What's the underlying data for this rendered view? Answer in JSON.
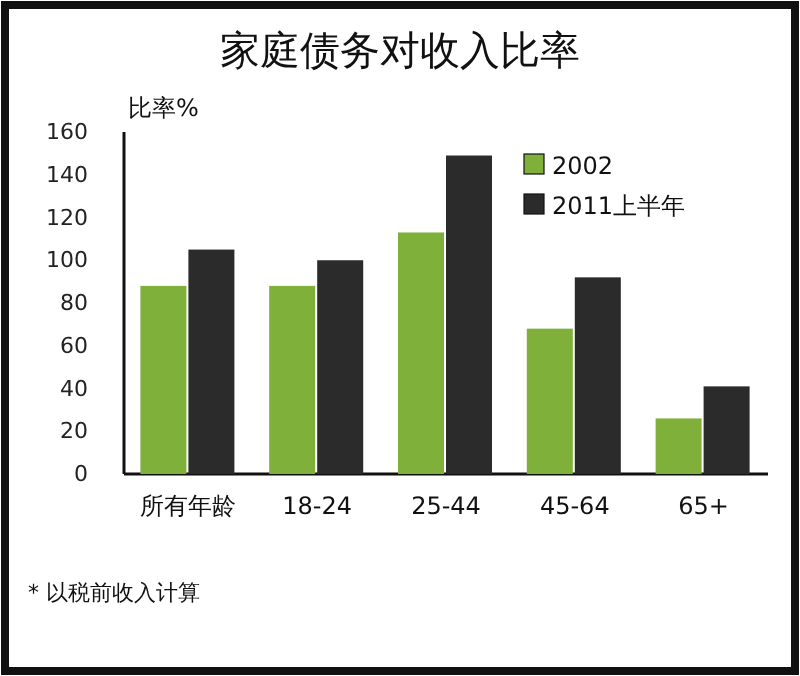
{
  "chart_data": {
    "type": "bar",
    "title": "家庭债务对收入比率",
    "ylabel": "比率%",
    "categories": [
      "所有年龄",
      "18-24",
      "25-44",
      "45-64",
      "65+"
    ],
    "series": [
      {
        "name": "2002",
        "color": "#7fb03a",
        "values": [
          88,
          88,
          113,
          68,
          26
        ]
      },
      {
        "name": "2011上半年",
        "color": "#2b2b2b",
        "values": [
          105,
          100,
          149,
          92,
          41
        ]
      }
    ],
    "ylim": [
      0,
      160
    ],
    "yticks": [
      0,
      20,
      40,
      60,
      80,
      100,
      120,
      140,
      160
    ],
    "legend": "top right",
    "annotations": [
      "* 以税前收入计算"
    ]
  }
}
